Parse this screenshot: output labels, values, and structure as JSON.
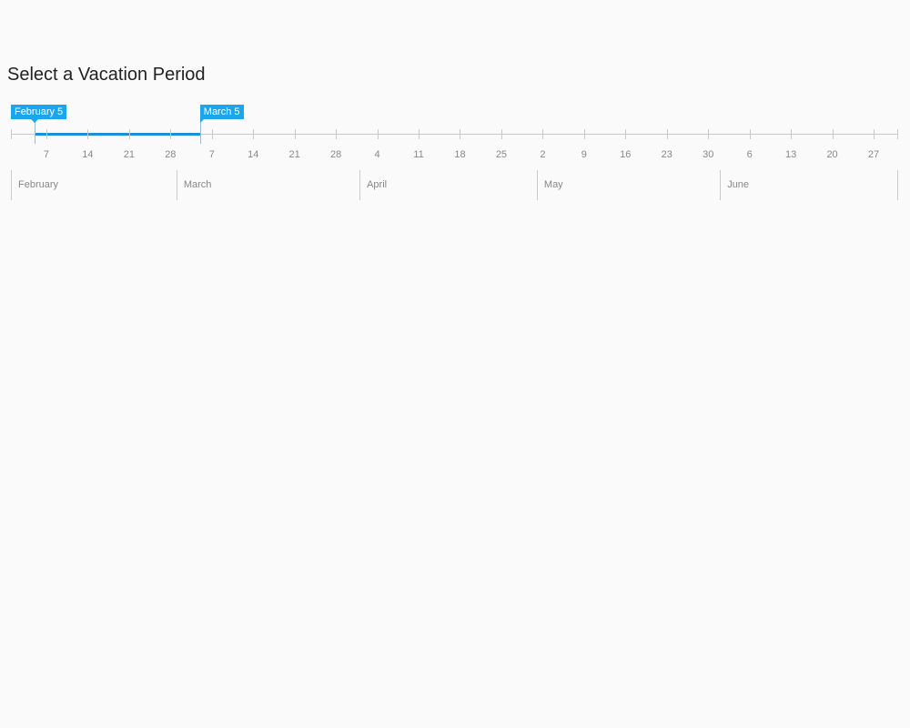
{
  "page": {
    "title": "Select a Vacation Period"
  },
  "slider": {
    "start_label": "February 5",
    "end_label": "March 5",
    "selection_start": "February 5",
    "selection_end": "March 5",
    "accent_color": "#1aa6ef",
    "range_color": "#1a91d6",
    "week_ticks": [
      "7",
      "14",
      "21",
      "28",
      "7",
      "14",
      "21",
      "28",
      "4",
      "11",
      "18",
      "25",
      "2",
      "9",
      "16",
      "23",
      "30",
      "6",
      "13",
      "20",
      "27"
    ],
    "months": [
      "February",
      "March",
      "April",
      "May",
      "June"
    ]
  }
}
